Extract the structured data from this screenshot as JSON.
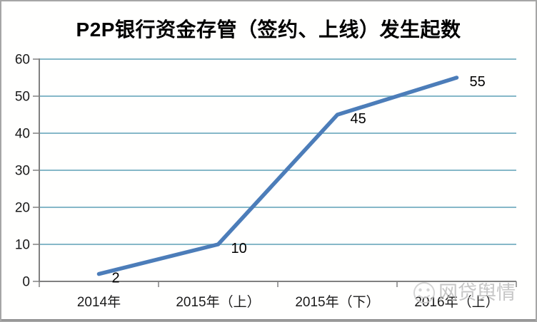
{
  "chart_data": {
    "type": "line",
    "title": "P2P银行资金存管（签约、上线）发生起数",
    "categories": [
      "2014年",
      "2015年（上）",
      "2015年（下）",
      "2016年（上）"
    ],
    "values": [
      2,
      10,
      45,
      55
    ],
    "data_labels": [
      "2",
      "10",
      "45",
      "55"
    ],
    "xlabel": "",
    "ylabel": "",
    "ylim": [
      0,
      60
    ],
    "yticks": [
      0,
      10,
      20,
      30,
      40,
      50,
      60
    ],
    "grid": true,
    "legend_position": "none",
    "line_color": "#4C7DB9",
    "gridline_color": "#86B8C8",
    "axis_color": "#808080",
    "label_color": "#1a1a1a"
  },
  "watermark": {
    "text": "网贷舆情",
    "color": "#bdbdbd"
  }
}
